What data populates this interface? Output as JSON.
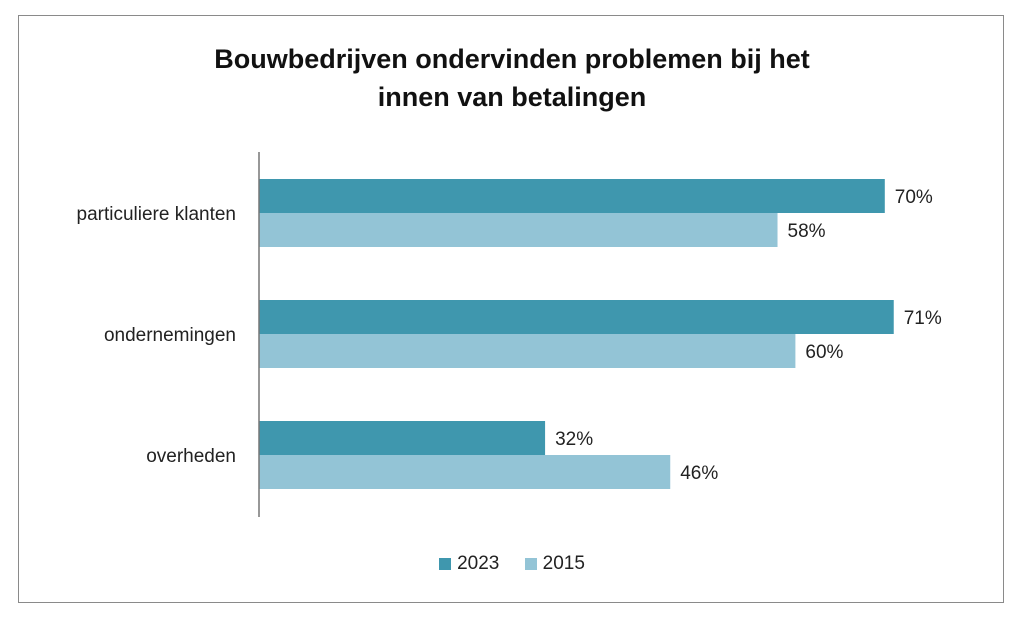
{
  "chart_data": {
    "type": "bar",
    "orientation": "horizontal",
    "title": "Bouwbedrijven ondervinden problemen bij het innen van betalingen",
    "title_lines": [
      "Bouwbedrijven ondervinden problemen bij het",
      "innen van betalingen"
    ],
    "categories": [
      "particuliere klanten",
      "ondernemingen",
      "overheden"
    ],
    "series": [
      {
        "name": "2023",
        "color": "#3f97ae",
        "values": [
          70,
          71,
          32
        ],
        "labels": [
          "70%",
          "71%",
          "32%"
        ]
      },
      {
        "name": "2015",
        "color": "#93c4d6",
        "values": [
          58,
          60,
          46
        ],
        "labels": [
          "58%",
          "60%",
          "46%"
        ]
      }
    ],
    "xlim": [
      0,
      100
    ],
    "grid": false,
    "legend": "bottom",
    "unit": "%"
  }
}
